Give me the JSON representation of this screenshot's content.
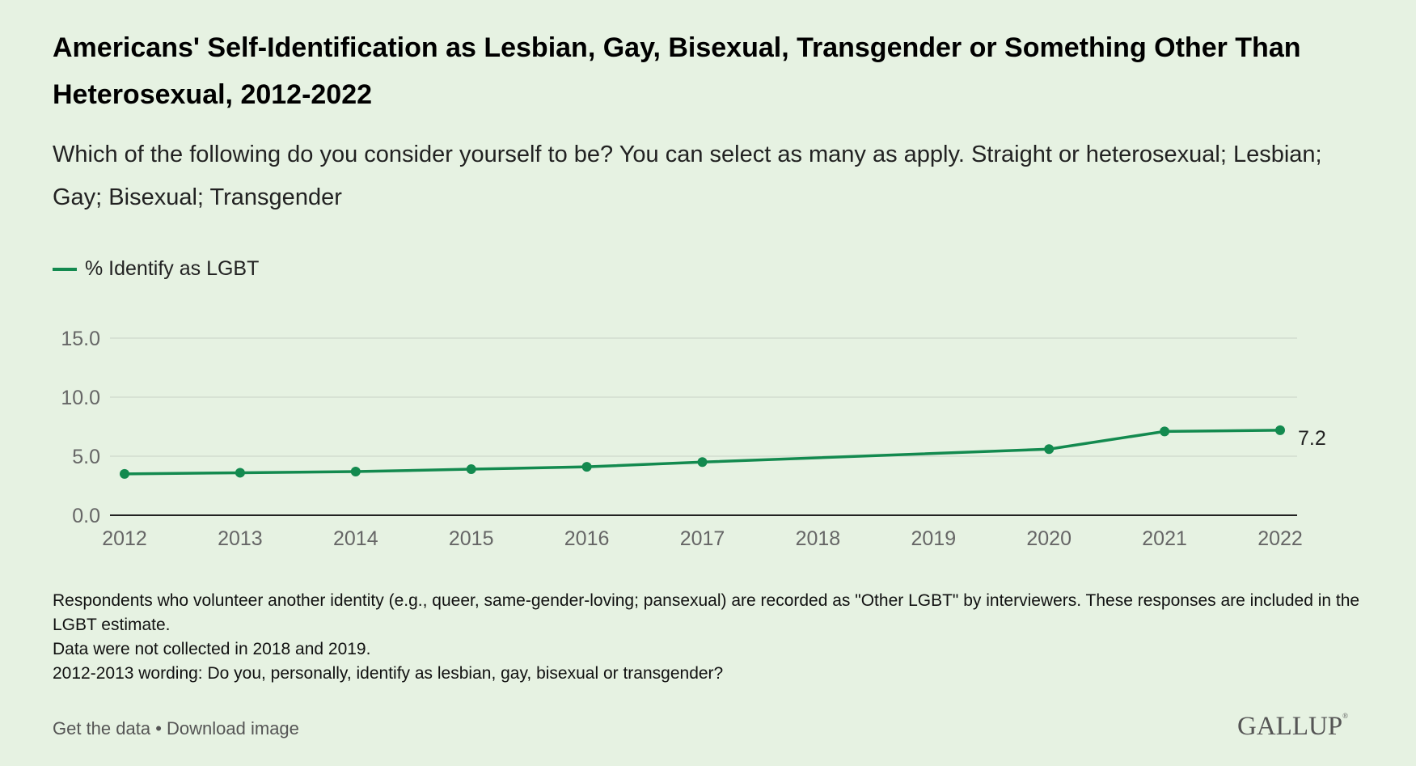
{
  "title": "Americans' Self-Identification as Lesbian, Gay, Bisexual, Transgender or Something Other Than Heterosexual, 2012-2022",
  "subtitle": "Which of the following do you consider yourself to be? You can select as many as apply. Straight or heterosexual; Lesbian; Gay; Bisexual; Transgender",
  "colors": {
    "line": "#138a4f",
    "background": "#e6f2e2",
    "grid": "#d2dccf"
  },
  "chart_data": {
    "type": "line",
    "title": "Americans' Self-Identification as Lesbian, Gay, Bisexual, Transgender or Something Other Than Heterosexual, 2012-2022",
    "xlabel": "",
    "ylabel": "",
    "x_ticks": [
      "2012",
      "2013",
      "2014",
      "2015",
      "2016",
      "2017",
      "2018",
      "2019",
      "2020",
      "2021",
      "2022"
    ],
    "y_ticks": [
      "0.0",
      "5.0",
      "10.0",
      "15.0"
    ],
    "ylim": [
      0,
      15
    ],
    "xlim": [
      2012,
      2022
    ],
    "grid": true,
    "legend_placement": "top-left",
    "series": [
      {
        "name": "% Identify as LGBT",
        "x": [
          2012,
          2013,
          2014,
          2015,
          2016,
          2017,
          2020,
          2021,
          2022
        ],
        "values": [
          3.5,
          3.6,
          3.7,
          3.9,
          4.1,
          4.5,
          5.6,
          7.1,
          7.2
        ],
        "end_label": "7.2"
      }
    ]
  },
  "notes": [
    "Respondents who volunteer another identity (e.g., queer, same-gender-loving; pansexual) are recorded as \"Other LGBT\" by interviewers. These responses are included in the LGBT estimate.",
    "Data were not collected in 2018 and 2019.",
    "2012-2013 wording: Do you, personally, identify as lesbian, gay, bisexual or transgender?"
  ],
  "footer": {
    "get_data": "Get the data",
    "separator": " • ",
    "download": "Download image"
  },
  "logo": "GALLUP"
}
